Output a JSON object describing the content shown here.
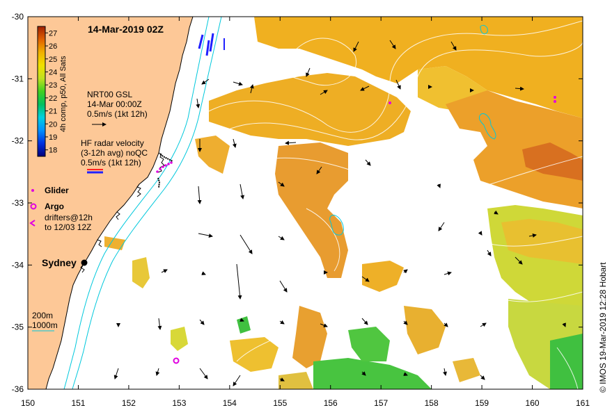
{
  "title": "14-Mar-2019 02Z",
  "axes": {
    "x_ticks": [
      "150",
      "151",
      "152",
      "153",
      "154",
      "155",
      "156",
      "157",
      "158",
      "159",
      "160",
      "161"
    ],
    "y_ticks": [
      "-30",
      "-31",
      "-32",
      "-33",
      "-34",
      "-35",
      "-36"
    ],
    "lon_range": [
      150,
      161
    ],
    "lat_range": [
      -36,
      -30
    ]
  },
  "colorbar": {
    "label": "4h comp, p50, All Sats",
    "ticks": [
      "27",
      "26",
      "25",
      "24",
      "23",
      "22",
      "21",
      "20",
      "19",
      "18"
    ],
    "range": [
      17.5,
      27.5
    ]
  },
  "legend": {
    "gsl": {
      "line1": "NRT00 GSL",
      "line2": "14-Mar 00:00Z",
      "line3": "0.5m/s (1kt 12h)"
    },
    "hf": {
      "line1": "HF radar velocity",
      "line2": "(3-12h avg) noQC",
      "line3": "0.5m/s (1kt 12h)"
    },
    "glider": "Glider",
    "argo": "Argo",
    "drifters": {
      "line1": "drifters@12h",
      "line2": "to 12/03 12Z"
    },
    "depth": {
      "line1": "200m",
      "line2": "1000m"
    }
  },
  "places": {
    "sydney": "Sydney"
  },
  "credit": "© IMOS 19-Mar-2019 12:28 Hobart",
  "colors": {
    "land": "#fdc897",
    "isobath": "#00c8dc",
    "glider": "#e000e0",
    "hf_red": "#ff2020",
    "hf_blue": "#2020ff"
  }
}
